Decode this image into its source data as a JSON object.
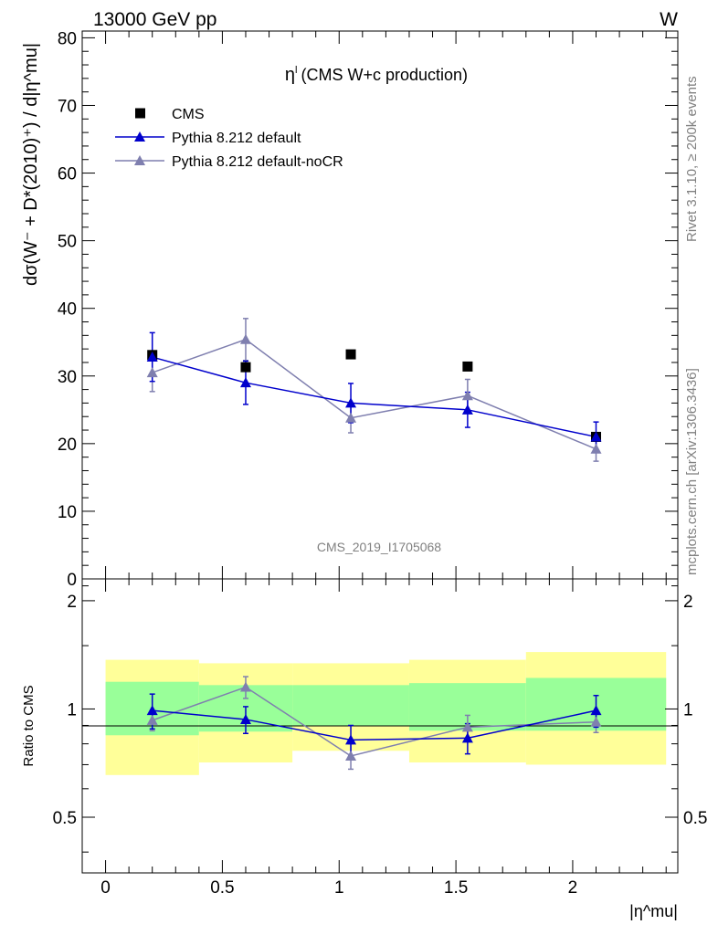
{
  "header": {
    "left": "13000 GeV pp",
    "right": "W"
  },
  "side": {
    "rivet": "Rivet 3.1.10, ≥ 200k events",
    "mcplots": "mcplots.cern.ch [arXiv:1306.3436]"
  },
  "colors": {
    "data": "#000000",
    "default": "#0000cc",
    "nocr": "#7f7faf",
    "band_inner": "#99ff99",
    "band_outer": "#ffff99"
  },
  "chart_data": [
    {
      "type": "scatter",
      "title": "η^l (CMS W+c production)",
      "title_main": "η",
      "title_sup": "l",
      "title_rest": "(CMS W+c production)",
      "ylabel": "dσ(W⁻ + D*(2010)⁺) / d|η^mu|",
      "watermark": "CMS_2019_I1705068",
      "xlim": [
        -0.1,
        2.45
      ],
      "ylim": [
        0,
        81
      ],
      "yticks": [
        0,
        10,
        20,
        30,
        40,
        50,
        60,
        70,
        80
      ],
      "legend_position": "top-left",
      "x": [
        0.2,
        0.6,
        1.05,
        1.55,
        2.1
      ],
      "series": [
        {
          "name": "CMS",
          "marker": "square",
          "values": [
            33.1,
            31.3,
            33.2,
            31.4,
            21.0
          ]
        },
        {
          "name": "Pythia 8.212 default",
          "marker": "triangle",
          "values": [
            32.8,
            29.0,
            26.0,
            25.0,
            21.0
          ],
          "err": [
            3.6,
            3.2,
            2.9,
            2.6,
            2.2
          ]
        },
        {
          "name": "Pythia 8.212 default-noCR",
          "marker": "triangle",
          "values": [
            30.5,
            35.4,
            23.8,
            27.1,
            19.2
          ],
          "err": [
            2.8,
            3.1,
            2.2,
            2.4,
            1.8
          ]
        }
      ]
    },
    {
      "type": "scatter",
      "ylabel": "Ratio to CMS",
      "xlabel": "|η^mu|",
      "xlim": [
        -0.1,
        2.45
      ],
      "ylim": [
        0.35,
        2.3
      ],
      "yticks": [
        0.5,
        1,
        2
      ],
      "ytick_labels": [
        "0.5",
        "1",
        "2"
      ],
      "xticks": [
        0,
        0.5,
        1,
        1.5,
        2
      ],
      "xtick_labels": [
        "0",
        "0.5",
        "1",
        "1.5",
        "2"
      ],
      "bins": [
        [
          0,
          0.4
        ],
        [
          0.4,
          0.8
        ],
        [
          0.8,
          1.3
        ],
        [
          1.3,
          1.8
        ],
        [
          1.8,
          2.4
        ]
      ],
      "band_inner": [
        [
          0.845,
          1.19
        ],
        [
          0.865,
          1.165
        ],
        [
          0.895,
          1.165
        ],
        [
          0.87,
          1.18
        ],
        [
          0.87,
          1.22
        ]
      ],
      "band_outer": [
        [
          0.655,
          1.37
        ],
        [
          0.71,
          1.34
        ],
        [
          0.765,
          1.34
        ],
        [
          0.71,
          1.37
        ],
        [
          0.7,
          1.44
        ]
      ],
      "x": [
        0.2,
        0.6,
        1.05,
        1.55,
        2.1
      ],
      "series": [
        {
          "name": "Pythia 8.212 default",
          "values": [
            0.99,
            0.935,
            0.82,
            0.83,
            0.99
          ],
          "err": [
            0.11,
            0.08,
            0.08,
            0.08,
            0.1
          ]
        },
        {
          "name": "Pythia 8.212 default-noCR",
          "values": [
            0.93,
            1.15,
            0.74,
            0.89,
            0.92
          ],
          "err": [
            0.06,
            0.08,
            0.06,
            0.07,
            0.06
          ]
        }
      ]
    }
  ]
}
